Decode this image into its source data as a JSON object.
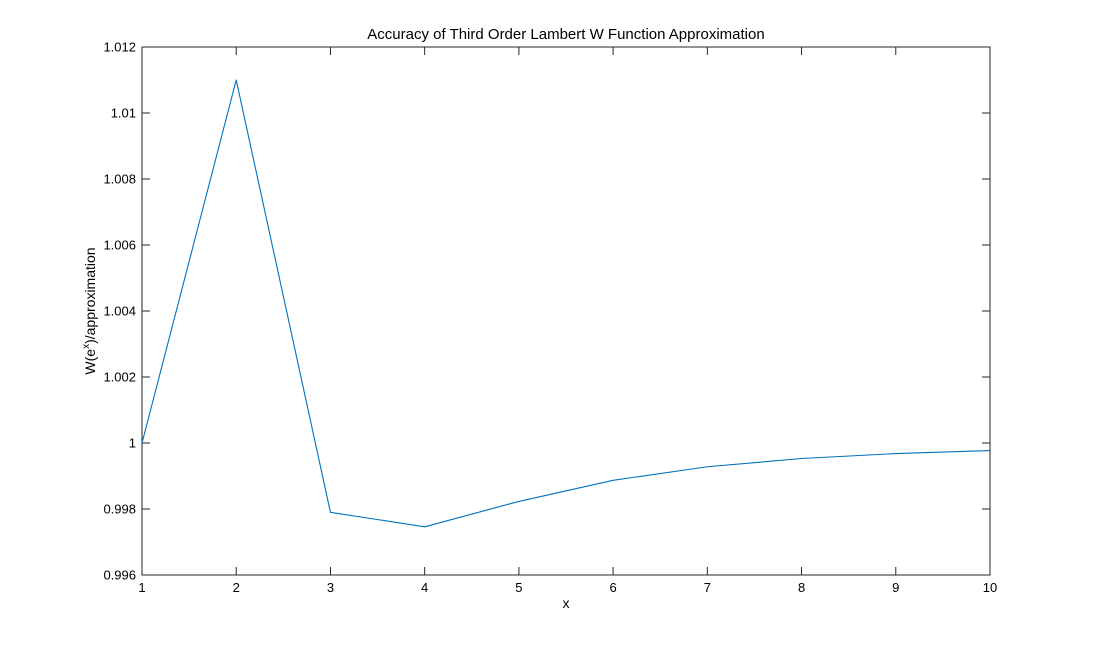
{
  "chart_data": {
    "type": "line",
    "title": "Accuracy of Third Order Lambert W Function Approximation",
    "xlabel": "x",
    "ylabel": {
      "prefix": "W(e",
      "superscript": "x",
      "suffix": ")/approximation"
    },
    "xlim": [
      1,
      10
    ],
    "ylim": [
      0.996,
      1.012
    ],
    "xticks": [
      1,
      2,
      3,
      4,
      5,
      6,
      7,
      8,
      9,
      10
    ],
    "xtick_labels": [
      "1",
      "2",
      "3",
      "4",
      "5",
      "6",
      "7",
      "8",
      "9",
      "10"
    ],
    "yticks": [
      0.996,
      0.998,
      1.0,
      1.002,
      1.004,
      1.006,
      1.008,
      1.01,
      1.012
    ],
    "ytick_labels": [
      "0.996",
      "0.998",
      "1",
      "1.002",
      "1.004",
      "1.006",
      "1.008",
      "1.01",
      "1.012"
    ],
    "grid": false,
    "box": true,
    "series": [
      {
        "color": "#0072bd",
        "x": [
          1,
          2,
          3,
          4,
          5,
          6,
          7,
          8,
          9,
          10
        ],
        "y": [
          1.0,
          1.011,
          0.9979,
          0.99746,
          0.99823,
          0.99887,
          0.99928,
          0.99953,
          0.99968,
          0.99977
        ]
      }
    ]
  }
}
